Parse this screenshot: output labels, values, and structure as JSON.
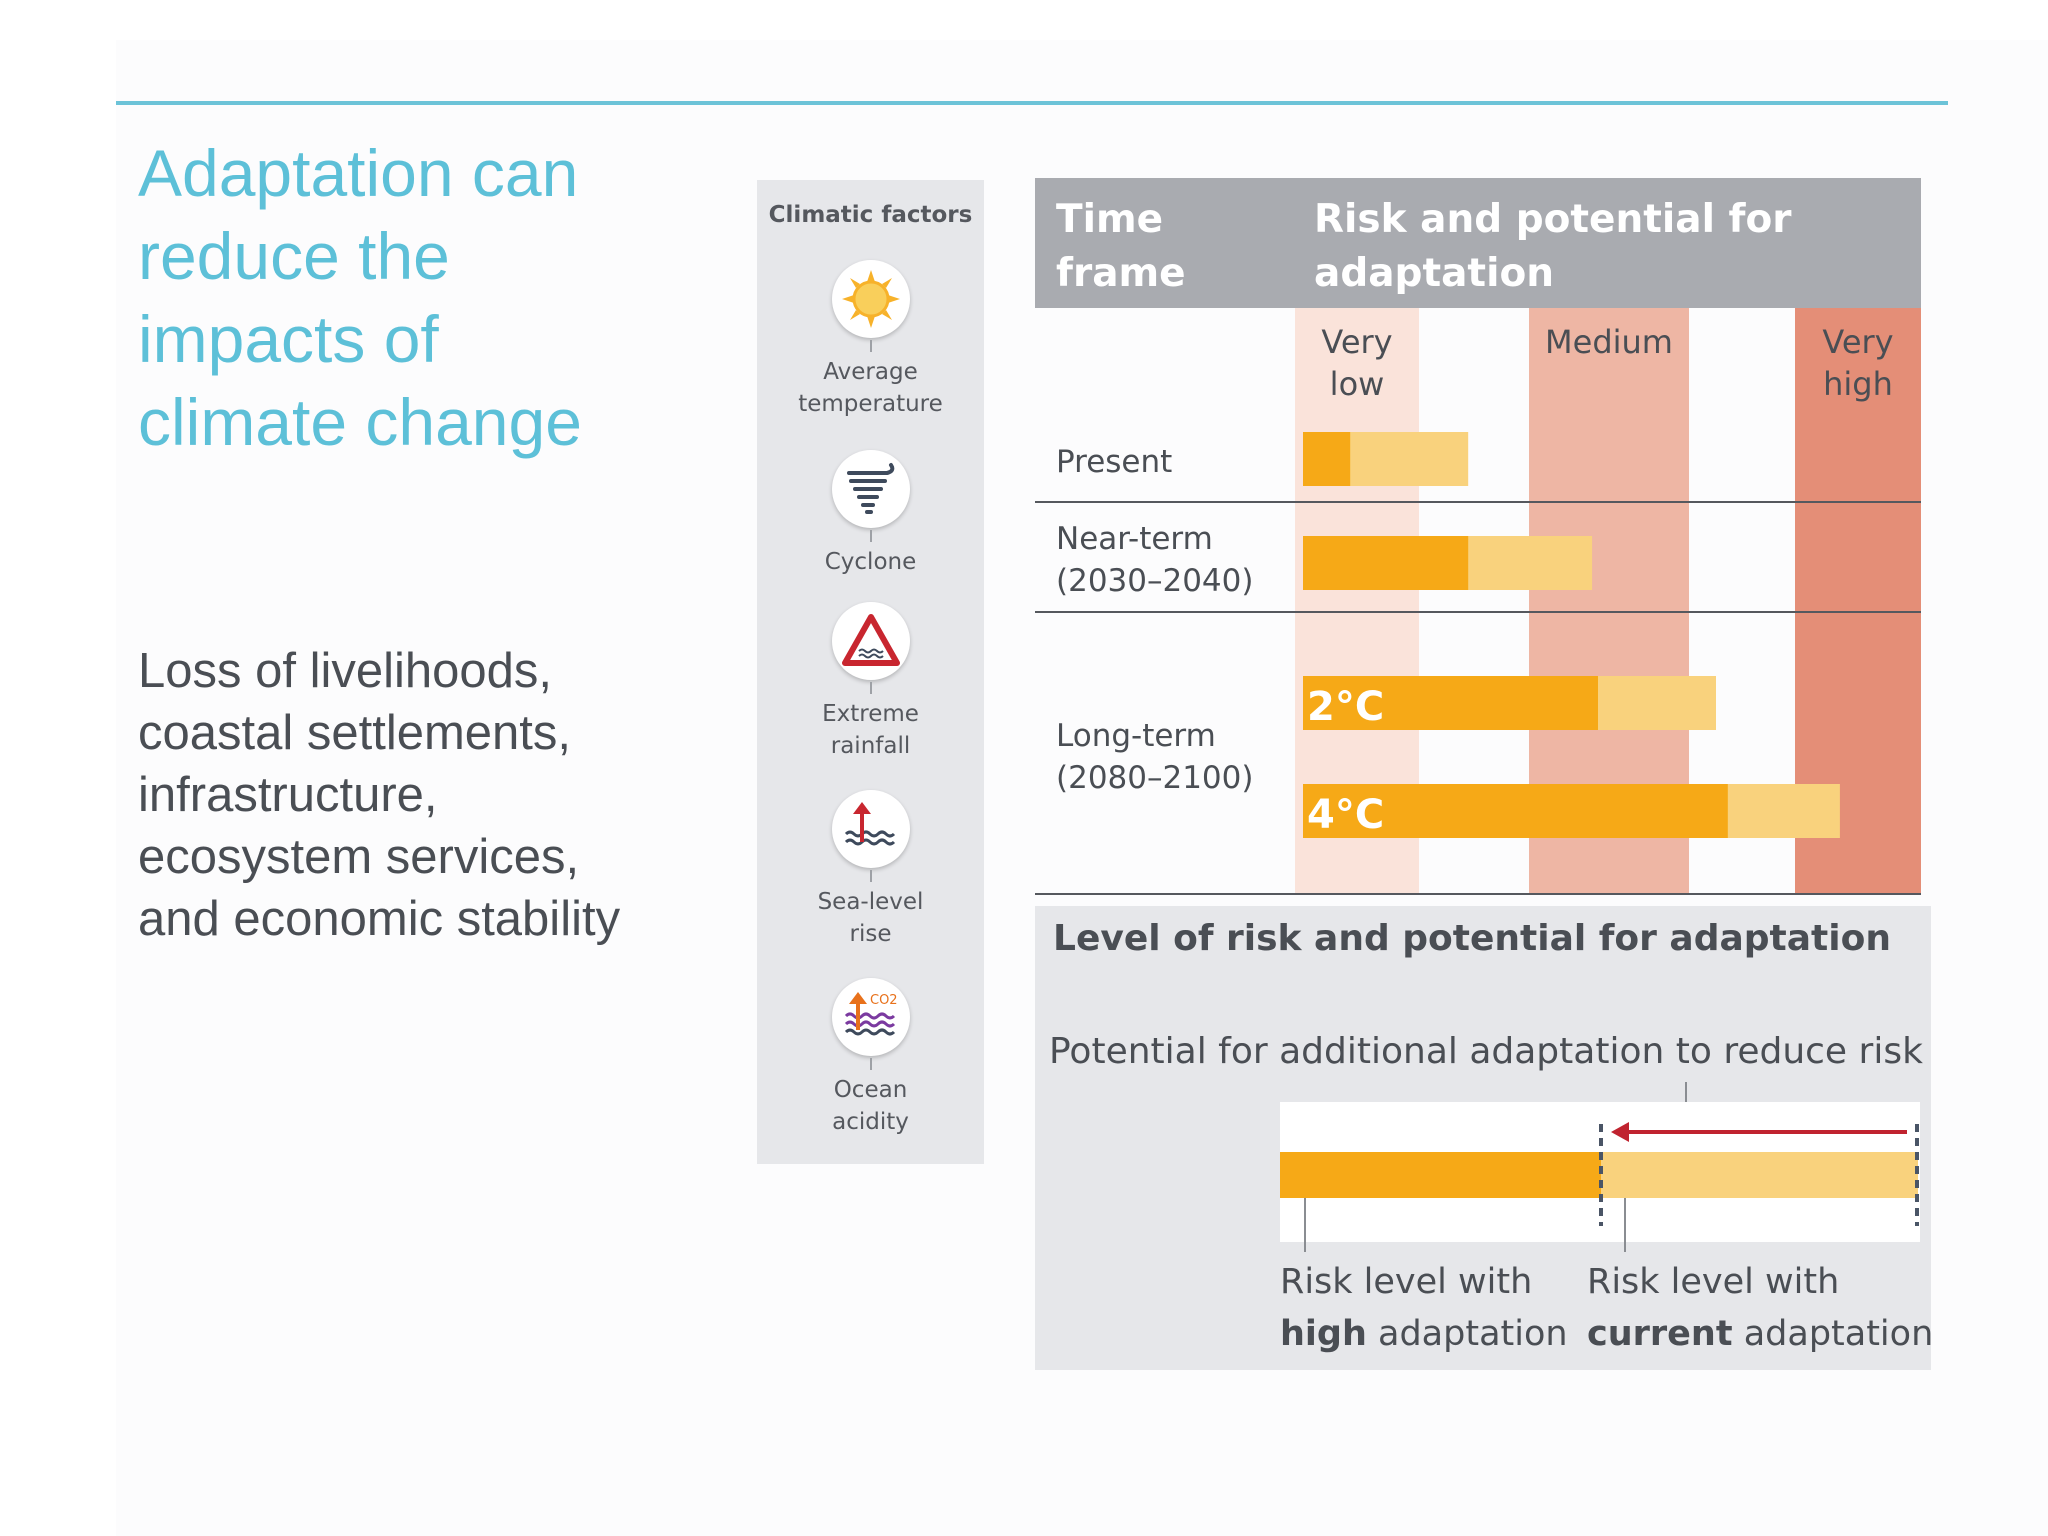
{
  "title_lines": [
    "Adaptation can",
    "reduce the",
    "impacts of",
    "climate change"
  ],
  "body_lines": [
    "Loss of livelihoods,",
    "coastal settlements,",
    "infrastructure,",
    "ecosystem services,",
    "and economic stability"
  ],
  "climatic_factors": {
    "title": "Climatic factors",
    "items": [
      {
        "icon": "sun-icon",
        "label_lines": [
          "Average",
          "temperature"
        ]
      },
      {
        "icon": "cyclone-icon",
        "label_lines": [
          "Cyclone"
        ]
      },
      {
        "icon": "rain-warning-icon",
        "label_lines": [
          "Extreme",
          "rainfall"
        ]
      },
      {
        "icon": "sea-level-icon",
        "label_lines": [
          "Sea-level",
          "rise"
        ]
      },
      {
        "icon": "ocean-acid-icon",
        "label_lines": [
          "Ocean",
          "acidity"
        ],
        "icon_text": "CO2"
      }
    ]
  },
  "colors": {
    "header_bg": "#a9abb0",
    "band_very_low": "#fae3da",
    "band_medium": "#eeb6a4",
    "band_very_high": "#e48e77",
    "bar_high_adaptation": "#f6a917",
    "bar_current_adaptation": "#f9d27d",
    "arrow": "#c0232f"
  },
  "chart_data": {
    "type": "bar",
    "header": {
      "time_frame_lines": [
        "Time",
        "frame"
      ],
      "risk_lines": [
        "Risk and potential for",
        "adaptation"
      ]
    },
    "scale_labels": [
      {
        "lines": [
          "Very",
          "low"
        ],
        "value": 0.0
      },
      {
        "lines": [
          "Medium"
        ],
        "value": 0.5
      },
      {
        "lines": [
          "Very",
          "high"
        ],
        "value": 1.0
      }
    ],
    "rows": [
      {
        "label_lines": [
          "Present"
        ],
        "bars": [
          {
            "tag": "",
            "high_adaptation": 0.08,
            "current_adaptation": 0.28
          }
        ]
      },
      {
        "label_lines": [
          "Near-term",
          "(2030–2040)"
        ],
        "bars": [
          {
            "tag": "",
            "high_adaptation": 0.28,
            "current_adaptation": 0.49
          }
        ]
      },
      {
        "label_lines": [
          "Long-term",
          "(2080–2100)"
        ],
        "bars": [
          {
            "tag": "2°C",
            "high_adaptation": 0.5,
            "current_adaptation": 0.7
          },
          {
            "tag": "4°C",
            "high_adaptation": 0.72,
            "current_adaptation": 0.91
          }
        ]
      }
    ]
  },
  "legend": {
    "title": "Level of risk and potential for adaptation",
    "subtitle": "Potential for additional adaptation to reduce risk",
    "high": {
      "line1": "Risk level with",
      "bold": "high",
      "rest": " adaptation"
    },
    "current": {
      "line1": "Risk level with",
      "bold": "current",
      "rest": " adaptation"
    }
  }
}
